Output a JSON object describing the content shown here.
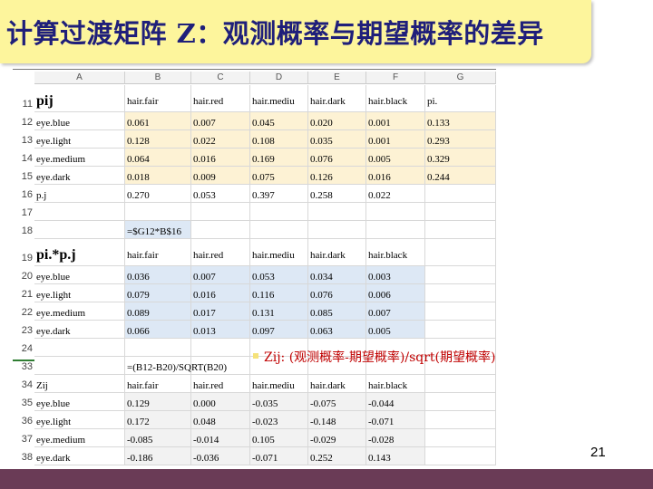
{
  "title": "计算过渡矩阵 Z：观测概率与期望概率的差异",
  "page_number": "21",
  "note": "Zij:  (观测概率-期望概率)/sqrt(期望概率)",
  "colors": {
    "title_bg": "#fdf59c",
    "title_text": "#1f1f7a",
    "note": "#c00000",
    "footer": "#6a3b56",
    "yellow": "#fdf2d4",
    "blue": "#dde8f5"
  },
  "columns": [
    "A",
    "B",
    "C",
    "D",
    "E",
    "F",
    "G"
  ],
  "rows": [
    {
      "n": "11",
      "big": true,
      "cells": [
        "pij",
        "hair.fair",
        "hair.red",
        "hair.mediu",
        "hair.dark",
        "hair.black",
        "pi."
      ]
    },
    {
      "n": "12",
      "cells": [
        "eye.blue",
        "0.061",
        "0.007",
        "0.045",
        "0.020",
        "0.001",
        "0.133"
      ]
    },
    {
      "n": "13",
      "cells": [
        "eye.light",
        "0.128",
        "0.022",
        "0.108",
        "0.035",
        "0.001",
        "0.293"
      ]
    },
    {
      "n": "14",
      "cells": [
        "eye.medium",
        "0.064",
        "0.016",
        "0.169",
        "0.076",
        "0.005",
        "0.329"
      ]
    },
    {
      "n": "15",
      "cells": [
        "eye.dark",
        "0.018",
        "0.009",
        "0.075",
        "0.126",
        "0.016",
        "0.244"
      ]
    },
    {
      "n": "16",
      "cells": [
        "p.j",
        "0.270",
        "0.053",
        "0.397",
        "0.258",
        "0.022",
        ""
      ]
    },
    {
      "n": "17",
      "cells": [
        "",
        "",
        "",
        "",
        "",
        "",
        ""
      ]
    },
    {
      "n": "18",
      "cells": [
        "",
        "=$G12*B$16",
        "",
        "",
        "",
        "",
        ""
      ]
    },
    {
      "n": "19",
      "big": true,
      "cells": [
        "pi.*p.j",
        "hair.fair",
        "hair.red",
        "hair.mediu",
        "hair.dark",
        "hair.black",
        ""
      ]
    },
    {
      "n": "20",
      "cells": [
        "eye.blue",
        "0.036",
        "0.007",
        "0.053",
        "0.034",
        "0.003",
        ""
      ]
    },
    {
      "n": "21",
      "cells": [
        "eye.light",
        "0.079",
        "0.016",
        "0.116",
        "0.076",
        "0.006",
        ""
      ]
    },
    {
      "n": "22",
      "cells": [
        "eye.medium",
        "0.089",
        "0.017",
        "0.131",
        "0.085",
        "0.007",
        ""
      ]
    },
    {
      "n": "23",
      "cells": [
        "eye.dark",
        "0.066",
        "0.013",
        "0.097",
        "0.063",
        "0.005",
        ""
      ]
    },
    {
      "n": "24",
      "cells": [
        "",
        "",
        "",
        "",
        "",
        "",
        ""
      ]
    },
    {
      "n": "33",
      "cells": [
        "",
        "=(B12-B20)/SQRT(B20)",
        "",
        "",
        "",
        "",
        ""
      ]
    },
    {
      "n": "34",
      "cells": [
        "Zij",
        "hair.fair",
        "hair.red",
        "hair.mediu",
        "hair.dark",
        "hair.black",
        ""
      ]
    },
    {
      "n": "35",
      "cells": [
        "eye.blue",
        "0.129",
        "0.000",
        "-0.035",
        "-0.075",
        "-0.044",
        ""
      ]
    },
    {
      "n": "36",
      "cells": [
        "eye.light",
        "0.172",
        "0.048",
        "-0.023",
        "-0.148",
        "-0.071",
        ""
      ]
    },
    {
      "n": "37",
      "cells": [
        "eye.medium",
        "-0.085",
        "-0.014",
        "0.105",
        "-0.029",
        "-0.028",
        ""
      ]
    },
    {
      "n": "38",
      "cells": [
        "eye.dark",
        "-0.186",
        "-0.036",
        "-0.071",
        "0.252",
        "0.143",
        ""
      ]
    }
  ]
}
